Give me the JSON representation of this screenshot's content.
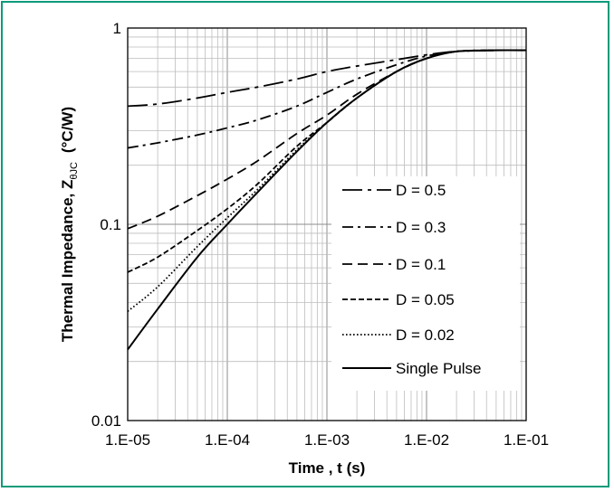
{
  "chart_data": {
    "type": "line",
    "x_scale": "log",
    "y_scale": "log",
    "xlim": [
      1e-05,
      0.1
    ],
    "ylim": [
      0.01,
      1
    ],
    "x_ticks": [
      "1.E-05",
      "1.E-04",
      "1.E-03",
      "1.E-02",
      "1.E-01"
    ],
    "y_ticks": [
      "1",
      "0.1",
      "0.01"
    ],
    "xlabel": "Time , t (s)",
    "ylabel": {
      "main": "Thermal Impedance, Z",
      "subscript": "θJC",
      "unit": "(°C/W)"
    },
    "grid": true,
    "legend_position": "right-center",
    "x": [
      1e-05,
      2e-05,
      5e-05,
      0.0001,
      0.0002,
      0.0005,
      0.001,
      0.002,
      0.005,
      0.01,
      0.02,
      0.05,
      0.1
    ],
    "series": [
      {
        "name": "D = 0.5",
        "style": "dashdot-long",
        "values": [
          0.4,
          0.41,
          0.44,
          0.47,
          0.5,
          0.55,
          0.6,
          0.64,
          0.69,
          0.73,
          0.76,
          0.77,
          0.77
        ]
      },
      {
        "name": "D = 0.3",
        "style": "dashdot",
        "values": [
          0.245,
          0.26,
          0.285,
          0.31,
          0.34,
          0.4,
          0.47,
          0.55,
          0.65,
          0.72,
          0.76,
          0.77,
          0.77
        ]
      },
      {
        "name": "D = 0.1",
        "style": "dashed-long",
        "values": [
          0.095,
          0.11,
          0.14,
          0.17,
          0.21,
          0.29,
          0.36,
          0.46,
          0.6,
          0.7,
          0.76,
          0.77,
          0.77
        ]
      },
      {
        "name": "D = 0.05",
        "style": "dashed-short",
        "values": [
          0.057,
          0.068,
          0.093,
          0.12,
          0.16,
          0.25,
          0.33,
          0.44,
          0.6,
          0.7,
          0.76,
          0.77,
          0.77
        ]
      },
      {
        "name": "D = 0.02",
        "style": "dotted",
        "values": [
          0.036,
          0.048,
          0.077,
          0.108,
          0.15,
          0.24,
          0.33,
          0.44,
          0.6,
          0.7,
          0.76,
          0.77,
          0.77
        ]
      },
      {
        "name": "Single Pulse",
        "style": "solid",
        "values": [
          0.023,
          0.037,
          0.068,
          0.1,
          0.145,
          0.235,
          0.33,
          0.44,
          0.6,
          0.7,
          0.76,
          0.77,
          0.77
        ]
      }
    ]
  }
}
